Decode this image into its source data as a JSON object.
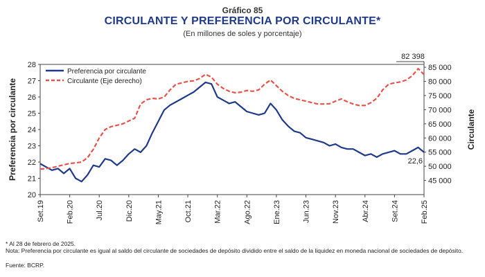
{
  "figure_label": "Gráfico 85",
  "chart_data": {
    "type": "line",
    "title": "CIRCULANTE Y PREFERENCIA POR CIRCULANTE*",
    "subtitle": "(En millones de soles y porcentaje)",
    "ylabel": "Preferencia por circulante",
    "y2label": "Circulante",
    "ylim": [
      20,
      28
    ],
    "y2lim": [
      40000,
      86000
    ],
    "y_ticks": [
      "20",
      "21",
      "22",
      "23",
      "24",
      "25",
      "26",
      "27",
      "28"
    ],
    "y2_ticks": [
      "45 000",
      "50 000",
      "55 000",
      "60 000",
      "65 000",
      "70 000",
      "75 000",
      "80 000",
      "85 000"
    ],
    "x_ticks": [
      "Set.19",
      "Feb.20",
      "Jul.20",
      "Dic.20",
      "May.21",
      "Oct.21",
      "Mar.22",
      "Ago.22",
      "Ene.23",
      "Jun.23",
      "Nov.23",
      "Abr.24",
      "Set.24",
      "Feb.25"
    ],
    "legend_position": "top-left",
    "grid": false,
    "series": [
      {
        "name": "Preferencia por circulante",
        "color": "#1f3a8a",
        "style": "solid",
        "axis": "left",
        "x": [
          0,
          1,
          2,
          3,
          4,
          5,
          6,
          7,
          8,
          9,
          10,
          11,
          12,
          13,
          14,
          15,
          16,
          17,
          18,
          19,
          20,
          21,
          22,
          23,
          24,
          25,
          26,
          27,
          28,
          29,
          30,
          31,
          32,
          33,
          34,
          35,
          36,
          37,
          38,
          39,
          40,
          41,
          42,
          43,
          44,
          45,
          46,
          47,
          48,
          49,
          50,
          51,
          52,
          53,
          54,
          55,
          56,
          57,
          58,
          59,
          60,
          61,
          62,
          63,
          64,
          65
        ],
        "values": [
          21.9,
          21.7,
          21.5,
          21.6,
          21.3,
          21.6,
          21.0,
          20.8,
          21.2,
          21.8,
          21.7,
          22.2,
          22.1,
          21.8,
          22.1,
          22.5,
          22.8,
          22.6,
          23.0,
          23.8,
          24.5,
          25.2,
          25.5,
          25.7,
          25.9,
          26.1,
          26.3,
          26.6,
          26.9,
          26.8,
          26.0,
          25.8,
          25.6,
          25.7,
          25.4,
          25.1,
          25.0,
          24.9,
          25.0,
          25.6,
          25.2,
          24.6,
          24.2,
          23.9,
          23.8,
          23.5,
          23.4,
          23.3,
          23.2,
          23.0,
          23.1,
          22.9,
          22.8,
          22.8,
          22.6,
          22.4,
          22.5,
          22.3,
          22.5,
          22.6,
          22.7,
          22.5,
          22.5,
          22.7,
          22.9,
          22.6
        ],
        "end_label": "22,6"
      },
      {
        "name": "Circulante (Eje derecho)",
        "color": "#e8524a",
        "style": "dashed",
        "axis": "right",
        "x": [
          0,
          1,
          2,
          3,
          4,
          5,
          6,
          7,
          8,
          9,
          10,
          11,
          12,
          13,
          14,
          15,
          16,
          17,
          18,
          19,
          20,
          21,
          22,
          23,
          24,
          25,
          26,
          27,
          28,
          29,
          30,
          31,
          32,
          33,
          34,
          35,
          36,
          37,
          38,
          39,
          40,
          41,
          42,
          43,
          44,
          45,
          46,
          47,
          48,
          49,
          50,
          51,
          52,
          53,
          54,
          55,
          56,
          57,
          58,
          59,
          60,
          61,
          62,
          63,
          64,
          65
        ],
        "values": [
          49000,
          49200,
          49500,
          50000,
          50500,
          51000,
          51200,
          51500,
          53000,
          56000,
          60000,
          63000,
          64000,
          64500,
          65000,
          66000,
          67000,
          72000,
          73500,
          74000,
          73800,
          74500,
          77000,
          79000,
          79500,
          80000,
          80200,
          81000,
          82500,
          81500,
          79000,
          77500,
          76500,
          76000,
          76200,
          76800,
          76500,
          77000,
          79000,
          80500,
          78500,
          76500,
          75000,
          74000,
          73500,
          73000,
          72500,
          72000,
          72000,
          72100,
          73000,
          73800,
          72800,
          72000,
          71500,
          71500,
          72500,
          74000,
          77000,
          79000,
          79500,
          79800,
          80500,
          82000,
          84500,
          82398
        ],
        "end_label": "82 398"
      }
    ]
  },
  "notes": {
    "line1": "* Al 28 de febrero de 2025.",
    "line2": "Nota: Preferencia por circulante es igual al saldo del circulante de sociedades de depósito dividido entre el saldo de la liquidez en moneda nacional de sociedades de depósito.",
    "line3": "Fuente: BCRP."
  }
}
